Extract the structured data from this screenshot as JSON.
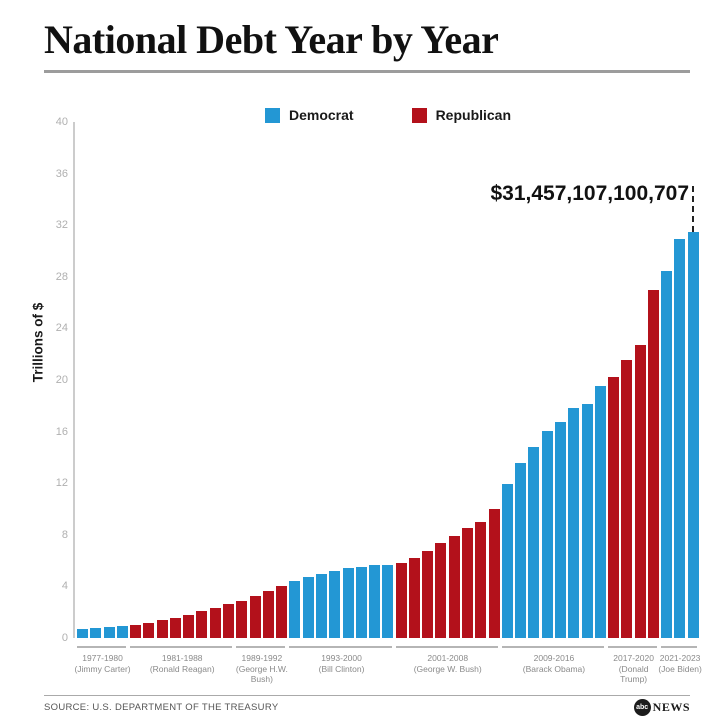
{
  "header": {
    "title": "National Debt Year by Year"
  },
  "legend": [
    {
      "label": "Democrat",
      "color": "#2397d4"
    },
    {
      "label": "Republican",
      "color": "#b3111b"
    }
  ],
  "annotation": {
    "text": "$31,457,107,100,707"
  },
  "footer": {
    "source": "SOURCE: U.S. DEPARTMENT OF THE TREASURY",
    "logo_abc": "abc",
    "logo_news": "NEWS"
  },
  "chart_data": {
    "type": "bar",
    "title": "National Debt Year by Year",
    "xlabel": "",
    "ylabel": "Trillions of $",
    "ylim": [
      0,
      40
    ],
    "yticks": [
      0,
      4,
      8,
      12,
      16,
      20,
      24,
      28,
      32,
      36,
      40
    ],
    "grid": false,
    "legend_position": "top",
    "annotation": {
      "text": "$31,457,107,100,707",
      "points_to_year": 2023,
      "value_trillions": 31.457
    },
    "colors": {
      "democrat": "#2397d4",
      "republican": "#b3111b"
    },
    "groups": [
      {
        "years": "1977-1980",
        "president": "(Jimmy Carter)",
        "party": "democrat",
        "x": [
          1977,
          1978,
          1979,
          1980
        ],
        "values": [
          0.7,
          0.77,
          0.83,
          0.91
        ]
      },
      {
        "years": "1981-1988",
        "president": "(Ronald Reagan)",
        "party": "republican",
        "x": [
          1981,
          1982,
          1983,
          1984,
          1985,
          1986,
          1987,
          1988
        ],
        "values": [
          1.0,
          1.14,
          1.38,
          1.57,
          1.82,
          2.13,
          2.35,
          2.6
        ]
      },
      {
        "years": "1989-1992",
        "president": "(George H.W. Bush)",
        "party": "republican",
        "x": [
          1989,
          1990,
          1991,
          1992
        ],
        "values": [
          2.86,
          3.23,
          3.67,
          4.06
        ]
      },
      {
        "years": "1993-2000",
        "president": "(Bill Clinton)",
        "party": "democrat",
        "x": [
          1993,
          1994,
          1995,
          1996,
          1997,
          1998,
          1999,
          2000
        ],
        "values": [
          4.41,
          4.69,
          4.97,
          5.22,
          5.41,
          5.53,
          5.66,
          5.67
        ]
      },
      {
        "years": "2001-2008",
        "president": "(George W. Bush)",
        "party": "republican",
        "x": [
          2001,
          2002,
          2003,
          2004,
          2005,
          2006,
          2007,
          2008
        ],
        "values": [
          5.81,
          6.23,
          6.78,
          7.38,
          7.93,
          8.51,
          9.01,
          10.02
        ]
      },
      {
        "years": "2009-2016",
        "president": "(Barack Obama)",
        "party": "democrat",
        "x": [
          2009,
          2010,
          2011,
          2012,
          2013,
          2014,
          2015,
          2016
        ],
        "values": [
          11.91,
          13.56,
          14.79,
          16.07,
          16.74,
          17.82,
          18.15,
          19.57
        ]
      },
      {
        "years": "2017-2020",
        "president": "(Donald Trump)",
        "party": "republican",
        "x": [
          2017,
          2018,
          2019,
          2020
        ],
        "values": [
          20.24,
          21.52,
          22.72,
          26.95
        ]
      },
      {
        "years": "2021-2023",
        "president": "(Joe Biden)",
        "party": "democrat",
        "x": [
          2021,
          2022,
          2023
        ],
        "values": [
          28.43,
          30.93,
          31.46
        ]
      }
    ]
  }
}
